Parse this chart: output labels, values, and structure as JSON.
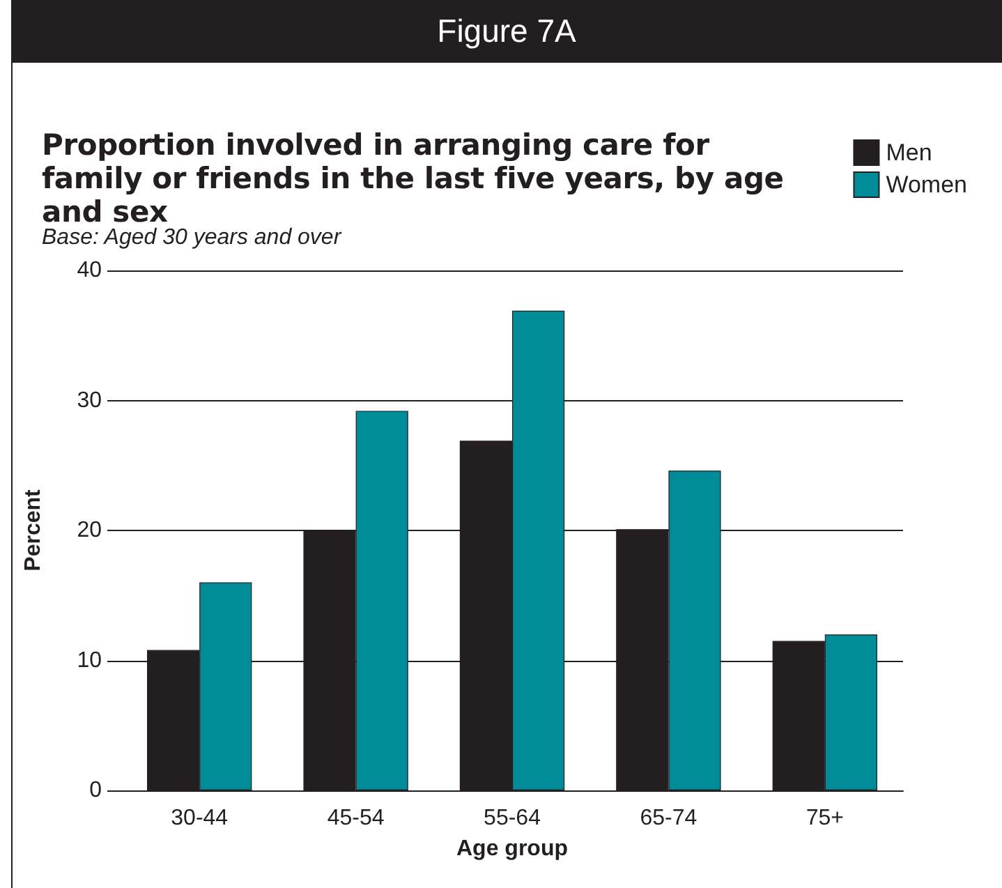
{
  "chart_data": {
    "type": "bar",
    "title": "Proportion involved in arranging care for family or friends in the last five years, by age and sex",
    "subtitle": "Base: Aged 30 years and over",
    "annotations": [
      "Figure 7A"
    ],
    "xlabel": "Age group",
    "ylabel": "Percent",
    "categories": [
      "30-44",
      "45-54",
      "55-64",
      "65-74",
      "75+"
    ],
    "series": [
      {
        "name": "Men",
        "color": "#231f20",
        "values": [
          10.8,
          20.0,
          26.9,
          20.1,
          11.5
        ]
      },
      {
        "name": "Women",
        "color": "#008b98",
        "values": [
          16.0,
          29.2,
          36.9,
          24.6,
          12.0
        ]
      }
    ],
    "ylim": [
      0,
      40
    ],
    "yticks": [
      0,
      10,
      20,
      30,
      40
    ],
    "grid": "y",
    "legend": "top right"
  }
}
